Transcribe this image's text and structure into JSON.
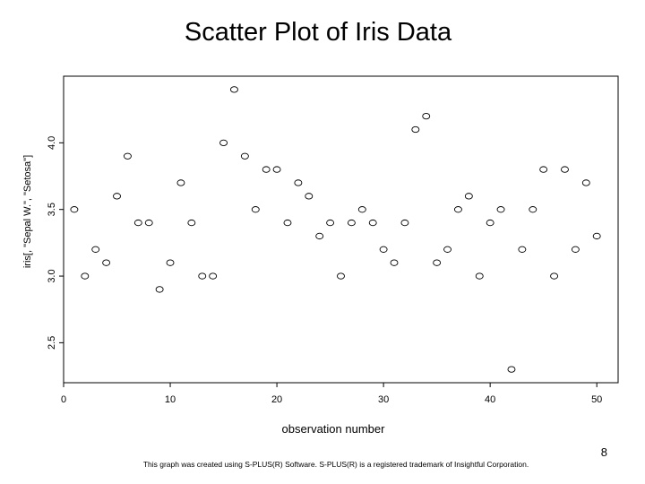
{
  "slide": {
    "title": "Scatter Plot of Iris Data",
    "page_number": "8",
    "footer": "This graph was created using S-PLUS(R) Software. S-PLUS(R) is a registered trademark of Insightful Corporation."
  },
  "chart_data": {
    "type": "scatter",
    "title": "",
    "xlabel": "observation number",
    "ylabel": "iris[, \"Sepal W.\", \"Setosa\"]",
    "xlim": [
      0,
      52
    ],
    "ylim": [
      2.2,
      4.5
    ],
    "x_ticks": [
      "0",
      "10",
      "20",
      "30",
      "40",
      "50"
    ],
    "y_ticks": [
      "2.5",
      "3.0",
      "3.5",
      "4.0"
    ],
    "grid": false,
    "legend": "none",
    "marker": "open-circle",
    "series": [
      {
        "x": [
          1,
          2,
          3,
          4,
          5,
          6,
          7,
          8,
          9,
          10,
          11,
          12,
          13,
          14,
          15,
          16,
          17,
          18,
          19,
          20,
          21,
          22,
          23,
          24,
          25,
          26,
          27,
          28,
          29,
          30,
          31,
          32,
          33,
          34,
          35,
          36,
          37,
          38,
          39,
          40,
          41,
          42,
          43,
          44,
          45,
          46,
          47,
          48,
          49,
          50
        ],
        "y": [
          3.5,
          3.0,
          3.2,
          3.1,
          3.6,
          3.9,
          3.4,
          3.4,
          2.9,
          3.1,
          3.7,
          3.4,
          3.0,
          3.0,
          4.0,
          4.4,
          3.9,
          3.5,
          3.8,
          3.8,
          3.4,
          3.7,
          3.6,
          3.3,
          3.4,
          3.0,
          3.4,
          3.5,
          3.4,
          3.2,
          3.1,
          3.4,
          4.1,
          4.2,
          3.1,
          3.2,
          3.5,
          3.6,
          3.0,
          3.4,
          3.5,
          2.3,
          3.2,
          3.5,
          3.8,
          3.0,
          3.8,
          3.2,
          3.7,
          3.3
        ]
      }
    ]
  }
}
